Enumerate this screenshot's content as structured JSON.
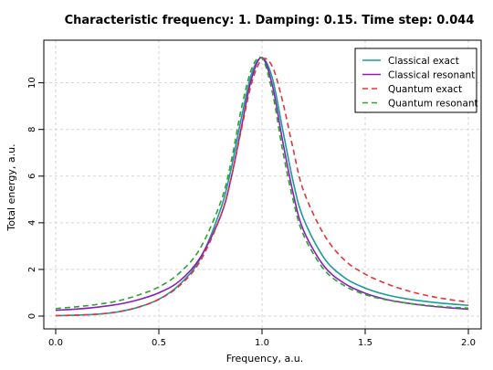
{
  "chart_data": {
    "type": "line",
    "title": "Characteristic frequency: 1. Damping: 0.15. Time step: 0.044",
    "xlabel": "Frequency, a.u.",
    "ylabel": "Total energy, a.u.",
    "xlim": [
      0,
      2
    ],
    "ylim": [
      0,
      11.2
    ],
    "xticks": [
      "0.0",
      "0.5",
      "1.0",
      "1.5",
      "2.0"
    ],
    "yticks": [
      "0",
      "2",
      "4",
      "6",
      "8",
      "10"
    ],
    "grid": true,
    "legend_position": "top-right",
    "x": [
      0.0,
      0.1,
      0.2,
      0.3,
      0.4,
      0.5,
      0.6,
      0.7,
      0.8,
      0.85,
      0.9,
      0.95,
      1.0,
      1.05,
      1.1,
      1.15,
      1.2,
      1.3,
      1.4,
      1.5,
      1.6,
      1.7,
      1.8,
      1.9,
      2.0
    ],
    "series": [
      {
        "name": "Classical exact",
        "color": "#1a9a9a",
        "dash": "solid",
        "values": [
          0.02,
          0.04,
          0.08,
          0.18,
          0.38,
          0.72,
          1.35,
          2.45,
          4.6,
          6.3,
          8.5,
          10.4,
          11.08,
          10.2,
          8.0,
          5.8,
          4.2,
          2.5,
          1.65,
          1.2,
          0.92,
          0.74,
          0.62,
          0.53,
          0.46
        ]
      },
      {
        "name": "Classical resonant",
        "color": "#8a1fb8",
        "dash": "solid",
        "values": [
          0.25,
          0.3,
          0.38,
          0.5,
          0.7,
          1.0,
          1.5,
          2.5,
          4.3,
          5.9,
          8.1,
          10.2,
          11.08,
          9.9,
          7.5,
          5.3,
          3.7,
          2.15,
          1.4,
          0.98,
          0.72,
          0.56,
          0.44,
          0.36,
          0.3
        ]
      },
      {
        "name": "Quantum exact",
        "color": "#e0353a",
        "dash": "dashed",
        "values": [
          0.02,
          0.04,
          0.08,
          0.18,
          0.38,
          0.72,
          1.3,
          2.35,
          4.3,
          5.9,
          8.0,
          10.0,
          11.0,
          10.7,
          9.2,
          7.2,
          5.4,
          3.5,
          2.4,
          1.8,
          1.4,
          1.1,
          0.88,
          0.72,
          0.6
        ]
      },
      {
        "name": "Quantum resonant",
        "color": "#2ea12e",
        "dash": "dashed",
        "values": [
          0.32,
          0.4,
          0.5,
          0.65,
          0.9,
          1.25,
          1.85,
          2.9,
          4.9,
          6.6,
          8.9,
          10.6,
          11.05,
          9.6,
          7.1,
          5.0,
          3.5,
          2.0,
          1.3,
          0.92,
          0.7,
          0.56,
          0.46,
          0.39,
          0.34
        ]
      }
    ]
  }
}
